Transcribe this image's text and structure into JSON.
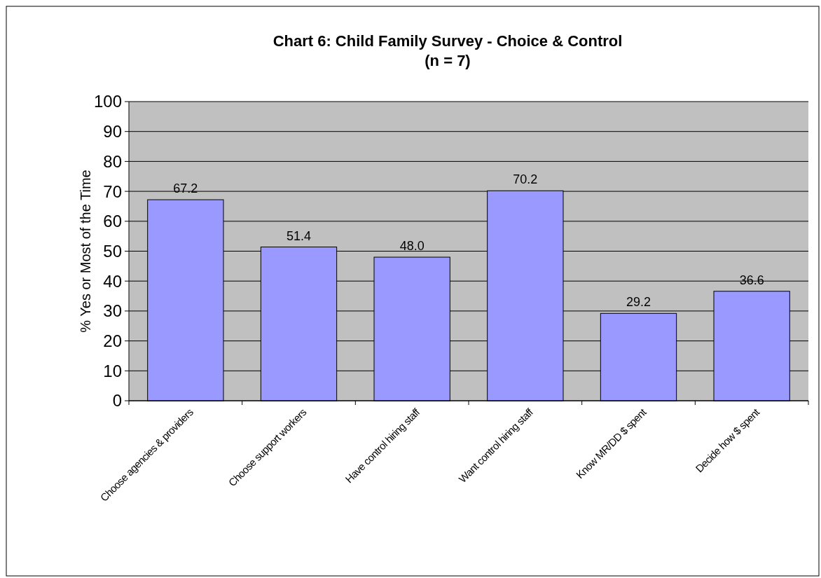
{
  "chart_data": {
    "type": "bar",
    "title": "Chart 6:  Child Family Survey - Choice & Control",
    "subtitle": "(n = 7)",
    "ylabel": "% Yes or Most of the Time",
    "categories": [
      "Choose agencies & providers",
      "Choose support workers",
      "Have control hiring staff",
      "Want control hiring staff",
      "Know MR/DD $ spent",
      "Decide how $ spent"
    ],
    "values": [
      67.2,
      51.4,
      48.0,
      70.2,
      29.2,
      36.6
    ],
    "value_labels": [
      "67.2",
      "51.4",
      "48.0",
      "70.2",
      "29.2",
      "36.6"
    ],
    "color": "#9999ff",
    "ylim": [
      0,
      100
    ],
    "yticks": [
      0,
      10,
      20,
      30,
      40,
      50,
      60,
      70,
      80,
      90,
      100
    ],
    "grid": "y"
  }
}
